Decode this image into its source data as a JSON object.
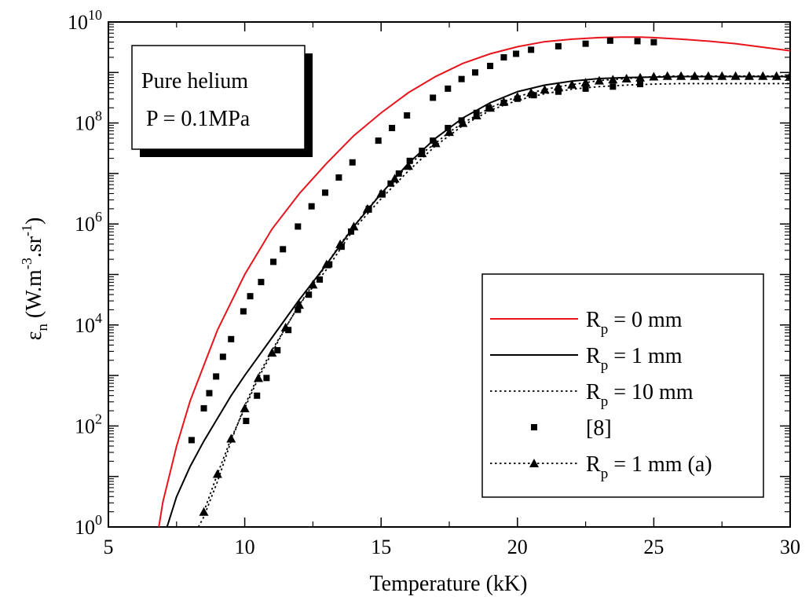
{
  "chart_data": {
    "type": "line",
    "title": "",
    "xlabel": "Temperature (kK)",
    "ylabel": {
      "main": "ε",
      "sub": "n",
      "unit_prefix": " (W.m",
      "sup1": "-3",
      "unit_mid": ".sr",
      "sup2": "-1",
      "unit_suffix": ")"
    },
    "xlim": [
      5,
      30
    ],
    "ylim_log10": [
      0,
      10
    ],
    "yscale": "log",
    "grid": false,
    "x_ticks": [
      {
        "value": 5,
        "label": "5"
      },
      {
        "value": 10,
        "label": "10"
      },
      {
        "value": 15,
        "label": "15"
      },
      {
        "value": 20,
        "label": "20"
      },
      {
        "value": 25,
        "label": "25"
      },
      {
        "value": 30,
        "label": "30"
      }
    ],
    "y_ticks": [
      {
        "exp": 0,
        "base": "10",
        "sup": "0"
      },
      {
        "exp": 2,
        "base": "10",
        "sup": "2"
      },
      {
        "exp": 4,
        "base": "10",
        "sup": "4"
      },
      {
        "exp": 6,
        "base": "10",
        "sup": "6"
      },
      {
        "exp": 8,
        "base": "10",
        "sup": "8"
      },
      {
        "exp": 10,
        "base": "10",
        "sup": "10"
      }
    ],
    "annotation": {
      "line1": "Pure helium",
      "line2": "P = 0.1MPa"
    },
    "legend_placement": "bottom-right",
    "series": [
      {
        "id": "rp0",
        "legend": {
          "main": "R",
          "sub": "p",
          "rest": " = 0 mm"
        },
        "style": "solid",
        "color": "#e8141b",
        "marker": "none",
        "x": [
          6.85,
          7.0,
          7.5,
          8.0,
          8.5,
          9.0,
          9.5,
          10.0,
          11.0,
          12.0,
          13.0,
          14.0,
          15.0,
          16.0,
          17.0,
          18.0,
          19.0,
          20.0,
          21.0,
          22.0,
          23.0,
          23.8,
          24.5,
          25.0,
          26.0,
          27.0,
          28.0,
          29.0,
          30.0
        ],
        "log10y": [
          0.0,
          0.5,
          1.6,
          2.5,
          3.2,
          3.9,
          4.45,
          5.0,
          5.9,
          6.6,
          7.2,
          7.75,
          8.2,
          8.6,
          8.92,
          9.18,
          9.37,
          9.51,
          9.61,
          9.66,
          9.69,
          9.7,
          9.7,
          9.69,
          9.66,
          9.62,
          9.57,
          9.5,
          9.43
        ]
      },
      {
        "id": "rp1",
        "legend": {
          "main": "R",
          "sub": "p",
          "rest": " = 1 mm"
        },
        "style": "solid",
        "color": "#000000",
        "marker": "none",
        "x": [
          7.15,
          7.5,
          8.0,
          8.5,
          9.0,
          9.5,
          10.0,
          11.0,
          12.0,
          13.0,
          14.0,
          15.0,
          16.0,
          17.0,
          18.0,
          19.0,
          20.0,
          21.0,
          22.0,
          23.0,
          24.0,
          25.0,
          26.0,
          27.0,
          28.0,
          29.0,
          30.0
        ],
        "log10y": [
          0.0,
          0.6,
          1.2,
          1.7,
          2.15,
          2.6,
          3.0,
          3.75,
          4.5,
          5.2,
          5.95,
          6.6,
          7.2,
          7.7,
          8.1,
          8.4,
          8.62,
          8.75,
          8.83,
          8.88,
          8.9,
          8.91,
          8.92,
          8.92,
          8.92,
          8.92,
          8.92
        ]
      },
      {
        "id": "rp10",
        "legend": {
          "main": "R",
          "sub": "p",
          "rest": " = 10 mm"
        },
        "style": "dotted",
        "color": "#000000",
        "marker": "none",
        "x": [
          8.3,
          8.5,
          9.0,
          9.5,
          10.0,
          10.5,
          11.0,
          12.0,
          13.0,
          14.0,
          15.0,
          16.0,
          17.0,
          18.0,
          19.0,
          20.0,
          21.0,
          22.0,
          23.0,
          24.0,
          25.0,
          26.0,
          27.0,
          28.0,
          29.0,
          30.0
        ],
        "log10y": [
          0.0,
          0.2,
          0.9,
          1.7,
          2.4,
          3.0,
          3.5,
          4.4,
          5.1,
          5.9,
          6.5,
          7.05,
          7.55,
          7.95,
          8.25,
          8.45,
          8.58,
          8.67,
          8.72,
          8.75,
          8.77,
          8.78,
          8.78,
          8.78,
          8.78,
          8.78
        ]
      },
      {
        "id": "ref8",
        "legend": {
          "main": "[8]",
          "sub": "",
          "rest": ""
        },
        "style": "none",
        "color": "#000000",
        "marker": "square",
        "x": [
          8.05,
          8.5,
          8.7,
          8.95,
          9.2,
          9.5,
          9.95,
          10.2,
          10.6,
          11.05,
          11.4,
          11.95,
          12.45,
          12.95,
          13.45,
          13.95,
          14.9,
          15.4,
          15.95,
          16.9,
          17.45,
          17.95,
          18.45,
          19.0,
          19.5,
          19.95,
          20.5,
          21.5,
          22.5,
          23.4,
          24.4,
          25.0,
          10.05,
          10.45,
          10.8,
          11.2,
          11.6,
          11.95,
          12.35,
          12.75,
          13.1,
          13.55,
          13.9,
          14.55,
          15.05,
          15.35,
          15.65,
          16.05,
          16.5,
          16.9,
          17.45,
          17.95,
          18.5,
          18.95,
          19.5,
          20.0,
          20.6,
          21.5,
          22.5,
          23.5,
          24.5
        ],
        "log10y": [
          1.72,
          2.35,
          2.65,
          2.98,
          3.37,
          3.72,
          4.27,
          4.57,
          4.85,
          5.25,
          5.5,
          5.95,
          6.35,
          6.62,
          6.92,
          7.22,
          7.65,
          7.9,
          8.15,
          8.5,
          8.68,
          8.87,
          9.0,
          9.13,
          9.3,
          9.37,
          9.45,
          9.52,
          9.57,
          9.63,
          9.62,
          9.6,
          2.1,
          2.6,
          2.95,
          3.5,
          3.9,
          4.3,
          4.6,
          4.9,
          5.2,
          5.55,
          5.85,
          6.3,
          6.6,
          6.8,
          7.0,
          7.25,
          7.45,
          7.65,
          7.9,
          8.05,
          8.2,
          8.3,
          8.4,
          8.48,
          8.55,
          8.62,
          8.68,
          8.72,
          8.77
        ]
      },
      {
        "id": "rp1a",
        "legend": {
          "main": "R",
          "sub": "p",
          "rest": " = 1 mm (a)"
        },
        "style": "dotted",
        "color": "#000000",
        "marker": "triangle",
        "x": [
          8.5,
          9.0,
          9.5,
          10.0,
          10.5,
          11.0,
          11.5,
          12.0,
          12.5,
          13.0,
          13.5,
          14.0,
          14.5,
          15.0,
          15.5,
          16.0,
          16.5,
          17.0,
          17.5,
          18.0,
          18.5,
          19.0,
          19.5,
          20.0,
          20.5,
          21.0,
          21.5,
          22.0,
          22.5,
          23.0,
          23.5,
          24.0,
          24.5,
          25.0,
          25.5,
          26.0,
          26.5,
          27.0,
          27.5,
          28.0,
          28.5,
          29.0,
          29.5,
          30.0
        ],
        "log10y": [
          0.3,
          1.05,
          1.75,
          2.35,
          2.95,
          3.45,
          3.95,
          4.4,
          4.8,
          5.2,
          5.6,
          5.95,
          6.3,
          6.6,
          6.9,
          7.15,
          7.4,
          7.6,
          7.82,
          8.0,
          8.15,
          8.3,
          8.42,
          8.52,
          8.6,
          8.66,
          8.72,
          8.76,
          8.8,
          8.84,
          8.86,
          8.88,
          8.9,
          8.92,
          8.93,
          8.93,
          8.93,
          8.93,
          8.93,
          8.93,
          8.93,
          8.93,
          8.93,
          8.93
        ]
      }
    ]
  }
}
